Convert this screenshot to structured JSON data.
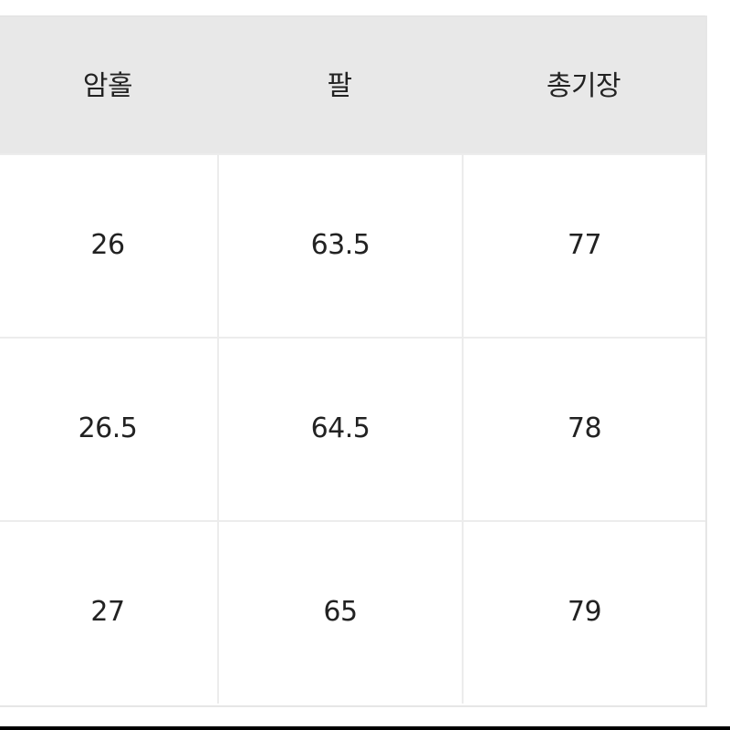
{
  "table": {
    "headers": [
      "암홀",
      "팔",
      "총기장"
    ],
    "rows": [
      [
        "26",
        "63.5",
        "77"
      ],
      [
        "26.5",
        "64.5",
        "78"
      ],
      [
        "27",
        "65",
        "79"
      ]
    ]
  },
  "colors": {
    "header_bg": "#e8e8e8",
    "border": "#ececec",
    "text": "#222222"
  }
}
